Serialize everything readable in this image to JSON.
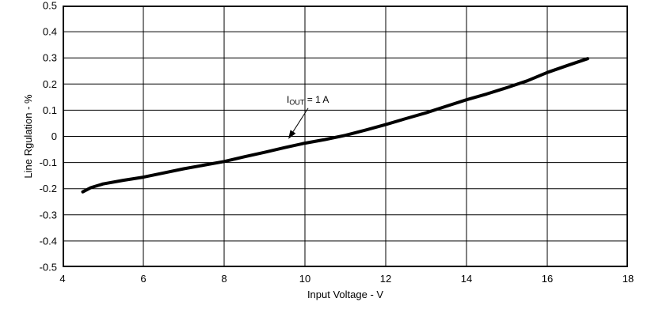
{
  "page": {
    "background_color": "#ffffff",
    "foreground_color": "#000000"
  },
  "chart_data": {
    "type": "line",
    "title": "",
    "xlabel": "Input Voltage - V",
    "ylabel": "Line Rgulation - %",
    "xlim": [
      4,
      18
    ],
    "ylim": [
      -0.5,
      0.5
    ],
    "grid": true,
    "legend": "none",
    "x_tick_labels": [
      "4",
      "6",
      "8",
      "10",
      "12",
      "14",
      "16",
      "18"
    ],
    "x_tick_values": [
      4,
      6,
      8,
      10,
      12,
      14,
      16,
      18
    ],
    "y_tick_labels": [
      "0.5",
      "0.4",
      "0.3",
      "0.2",
      "0.1",
      "0",
      "-0.1",
      "-0.2",
      "-0.3",
      "-0.4",
      "-0.5"
    ],
    "y_tick_values": [
      0.5,
      0.4,
      0.3,
      0.2,
      0.1,
      0,
      -0.1,
      -0.2,
      -0.3,
      -0.4,
      -0.5
    ],
    "line_color": "#000000",
    "line_width": 4,
    "grid_color": "#000000",
    "border_color": "#000000",
    "series": [
      {
        "name": "IOUT = 1 A",
        "x": [
          4.5,
          4.7,
          5.0,
          5.5,
          6.0,
          6.5,
          7.0,
          7.5,
          8.0,
          8.5,
          9.0,
          9.5,
          10.0,
          10.5,
          11.0,
          11.5,
          12.0,
          12.5,
          13.0,
          13.5,
          14.0,
          14.5,
          15.0,
          15.5,
          16.0,
          16.5,
          17.0
        ],
        "y": [
          -0.212,
          -0.196,
          -0.182,
          -0.168,
          -0.156,
          -0.14,
          -0.124,
          -0.11,
          -0.096,
          -0.078,
          -0.061,
          -0.043,
          -0.026,
          -0.012,
          0.004,
          0.024,
          0.045,
          0.068,
          0.09,
          0.115,
          0.14,
          0.162,
          0.186,
          0.212,
          0.244,
          0.271,
          0.297
        ]
      }
    ],
    "annotation": {
      "text_prefix": "I",
      "text_subscript": "OUT",
      "text_suffix": " = 1 A",
      "text_xy": [
        9.55,
        0.128
      ],
      "arrow_start_xy": [
        10.08,
        0.108
      ],
      "arrow_tip_xy": [
        9.59,
        -0.01
      ]
    }
  }
}
